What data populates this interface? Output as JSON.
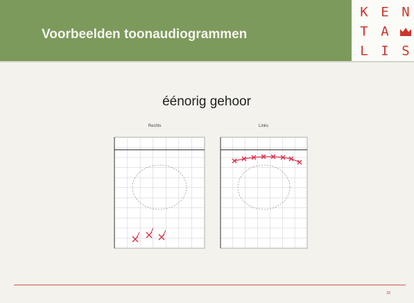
{
  "header": {
    "title": "Voorbeelden toonaudiogrammen",
    "logo": [
      "K",
      "E",
      "N",
      "T",
      "A",
      "L",
      "I",
      "S"
    ]
  },
  "slide": {
    "heading": "éénorig gehoor",
    "audiograms": [
      {
        "label": "Rechts"
      },
      {
        "label": "Links"
      }
    ],
    "page_number": "33"
  }
}
